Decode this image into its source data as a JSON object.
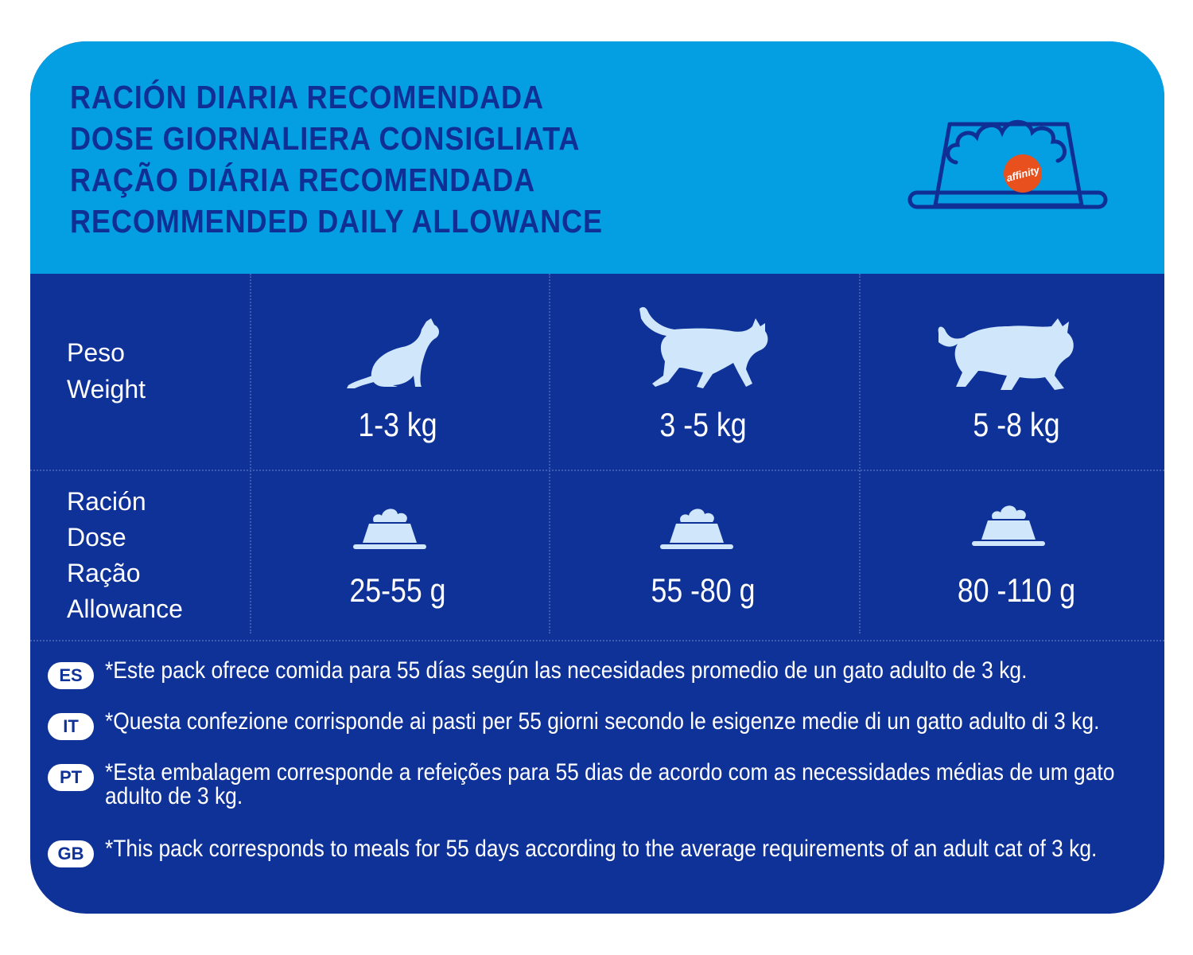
{
  "header": {
    "titles": [
      "RACIÓN DIARIA RECOMENDADA",
      "DOSE GIORNALIERA CONSIGLIATA",
      "RAÇÃO DIÁRIA RECOMENDADA",
      "RECOMMENDED DAILY ALLOWANCE"
    ],
    "brand_badge": "affinity",
    "icon": "food-bowl-icon"
  },
  "table": {
    "weight_labels": [
      "Peso",
      "Weight"
    ],
    "ration_labels": [
      "Ración",
      "Dose",
      "Ração",
      "Allowance"
    ],
    "weights": [
      "1-3 kg",
      "3 -5 kg",
      "5 -8 kg"
    ],
    "rations": [
      "25-55 g",
      "55 -80 g",
      "80 -110 g"
    ],
    "cat_icons": [
      "sitting-cat-icon",
      "walking-cat-icon",
      "fluffy-cat-icon"
    ]
  },
  "notes": [
    {
      "code": "ES",
      "text": "*Este pack ofrece comida para 55 días según las necesidades promedio de un gato adulto de 3 kg."
    },
    {
      "code": "IT",
      "text": "*Questa confezione corrisponde ai pasti per 55 giorni secondo le esigenze medie di un gatto adulto di 3 kg."
    },
    {
      "code": "PT",
      "text": "*Esta embalagem corresponde a refeições para 55 dias de acordo com as necessidades médias de um gato adulto de 3 kg."
    },
    {
      "code": "GB",
      "text": "*This pack corresponds to meals for 55 days according to the average requirements of an adult cat of 3 kg."
    }
  ],
  "colors": {
    "header_bg": "#049fe3",
    "body_bg": "#0f3299",
    "title_text": "#0f2f95",
    "icon_fill": "#cfe6fb",
    "brand_badge": "#e8501e"
  }
}
